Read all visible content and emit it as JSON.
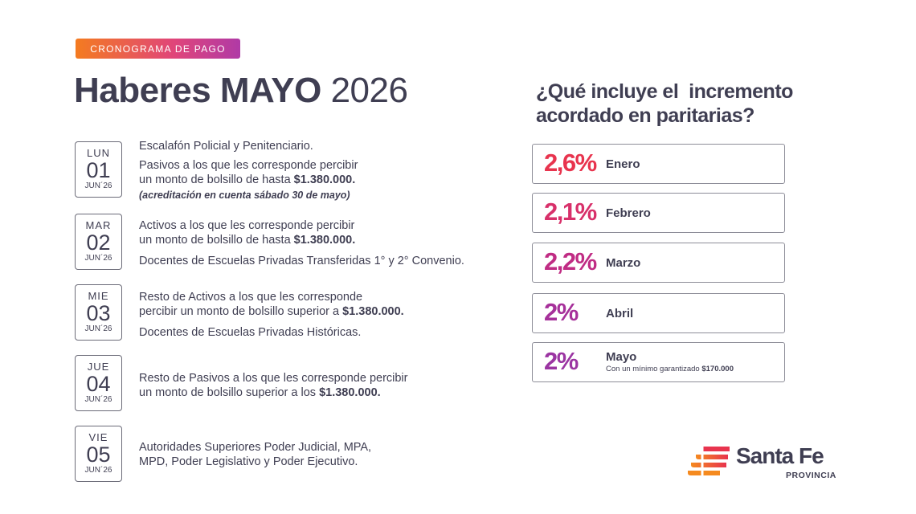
{
  "header": {
    "badge": "CRONOGRAMA DE PAGO",
    "title_bold": "Haberes MAYO",
    "title_year": "2026"
  },
  "schedule": [
    {
      "dow": "LUN",
      "day": "01",
      "month": "JUN´26",
      "line1": "Escalafón Policial y Penitenciario.",
      "line2": "Pasivos a los que les corresponde percibir",
      "line3": "un monto de bolsillo de hasta",
      "amount": "$1.380.000.",
      "note": "(acreditación en cuenta sábado 30 de mayo)"
    },
    {
      "dow": "MAR",
      "day": "02",
      "month": "JUN´26",
      "line1": "Activos a los que les corresponde percibir",
      "line2": "un monto de bolsillo de hasta",
      "amount": "$1.380.000.",
      "line3": "Docentes de Escuelas Privadas Transferidas 1° y 2° Convenio."
    },
    {
      "dow": "MIE",
      "day": "03",
      "month": "JUN´26",
      "line1": "Resto de Activos a los que les corresponde",
      "line2": "percibir un monto de bolsillo superior a",
      "amount": "$1.380.000.",
      "line3": "Docentes de Escuelas Privadas Históricas."
    },
    {
      "dow": "JUE",
      "day": "04",
      "month": "JUN´26",
      "line1": "Resto de Pasivos a los que les corresponde percibir",
      "line2": "un monto de bolsillo superior a los",
      "amount": "$1.380.000."
    },
    {
      "dow": "VIE",
      "day": "05",
      "month": "JUN´26",
      "line1": "Autoridades Superiores Poder Judicial, MPA,",
      "line2": "MPD, Poder Legislativo y Poder Ejecutivo."
    }
  ],
  "increments": {
    "title_line1": "¿Qué incluye el  incremento",
    "title_line2": "acordado en paritarias?",
    "items": [
      {
        "pct": "2,6%",
        "month": "Enero",
        "color": "#e8344e"
      },
      {
        "pct": "2,1%",
        "month": "Febrero",
        "color": "#d8306a"
      },
      {
        "pct": "2,2%",
        "month": "Marzo",
        "color": "#c02c84"
      },
      {
        "pct": "2%",
        "month": "Abril",
        "color": "#a6309a"
      },
      {
        "pct": "2%",
        "month": "Mayo",
        "color": "#9b35a2",
        "sub": "Con un mínimo garantizado",
        "sub_amount": "$170.000"
      }
    ]
  },
  "logo": {
    "name": "Santa Fe",
    "sub": "PROVINCIA"
  },
  "colors": {
    "text": "#3f3e52",
    "badge_start": "#f47b20",
    "badge_end": "#b03aa6"
  }
}
